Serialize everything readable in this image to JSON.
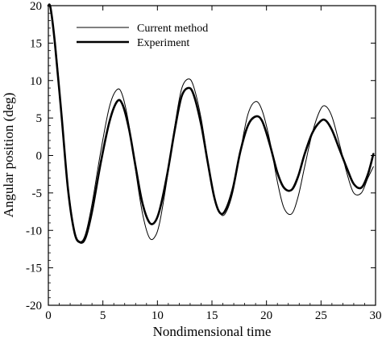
{
  "chart_data": {
    "type": "line",
    "title": "",
    "xlabel": "Nondimensional time",
    "ylabel": "Angular position (deg)",
    "xlim": [
      0,
      30
    ],
    "ylim": [
      -20,
      20
    ],
    "xticks": [
      "0",
      "5",
      "10",
      "15",
      "20",
      "25",
      "30"
    ],
    "yticks": [
      "20",
      "15",
      "10",
      "5",
      "0",
      "-5",
      "-10",
      "-15",
      "-20"
    ],
    "grid": false,
    "legend": "top-left",
    "series": [
      {
        "name": "Current method",
        "color": "#000000",
        "style": "thin",
        "x": [
          0,
          0.15,
          0.6,
          1.2,
          1.8,
          2.4,
          2.9,
          3.4,
          4.0,
          4.8,
          5.6,
          6.3,
          6.8,
          7.4,
          8.0,
          8.6,
          9.2,
          9.7,
          10.2,
          10.9,
          11.6,
          12.2,
          12.8,
          13.3,
          14.0,
          14.6,
          15.2,
          15.7,
          16.2,
          16.9,
          17.6,
          18.3,
          19.0,
          19.6,
          20.3,
          21.0,
          21.6,
          22.3,
          22.9,
          23.5,
          24.2,
          24.9,
          25.4,
          26.0,
          26.7,
          27.4,
          28.0,
          28.7,
          29.3,
          29.8
        ],
        "y": [
          20,
          19.8,
          15.5,
          6,
          -4,
          -10,
          -11.5,
          -10.5,
          -6.5,
          0.5,
          6.5,
          8.8,
          8.0,
          4.0,
          -2.0,
          -7.5,
          -10.8,
          -11.0,
          -9.0,
          -3.0,
          4.0,
          8.8,
          10.2,
          9.3,
          5.0,
          -0.5,
          -5.5,
          -7.6,
          -7.8,
          -5.0,
          0.5,
          5.5,
          7.2,
          6.0,
          2.0,
          -3.5,
          -7.0,
          -7.8,
          -5.5,
          -1.5,
          3.0,
          6.0,
          6.6,
          5.2,
          1.5,
          -2.5,
          -5.0,
          -5.0,
          -3.0,
          -1.5
        ]
      },
      {
        "name": "Experiment",
        "color": "#000000",
        "style": "thick",
        "x": [
          0,
          0.2,
          0.6,
          1.2,
          1.8,
          2.4,
          2.9,
          3.4,
          4.0,
          4.8,
          5.6,
          6.3,
          6.8,
          7.4,
          8.0,
          8.6,
          9.2,
          9.7,
          10.2,
          10.9,
          11.6,
          12.2,
          12.8,
          13.3,
          14.0,
          14.6,
          15.2,
          15.7,
          16.2,
          16.9,
          17.6,
          18.3,
          19.0,
          19.6,
          20.3,
          21.0,
          21.6,
          22.3,
          22.9,
          23.5,
          24.2,
          24.9,
          25.4,
          26.0,
          26.7,
          27.4,
          28.0,
          28.7,
          29.3,
          29.8
        ],
        "y": [
          20,
          19.7,
          15.0,
          5.5,
          -4.5,
          -10.3,
          -11.6,
          -11.0,
          -7.5,
          -1.0,
          4.5,
          7.2,
          6.8,
          3.5,
          -1.5,
          -6.2,
          -8.8,
          -9.0,
          -7.3,
          -2.5,
          3.5,
          7.8,
          9.0,
          8.2,
          4.2,
          -0.8,
          -5.5,
          -7.6,
          -7.4,
          -4.5,
          0.5,
          4.0,
          5.2,
          4.6,
          1.5,
          -2.3,
          -4.3,
          -4.6,
          -2.8,
          0.2,
          3.0,
          4.5,
          4.7,
          3.4,
          0.8,
          -1.8,
          -3.8,
          -4.3,
          -2.5,
          0.2
        ]
      }
    ]
  }
}
